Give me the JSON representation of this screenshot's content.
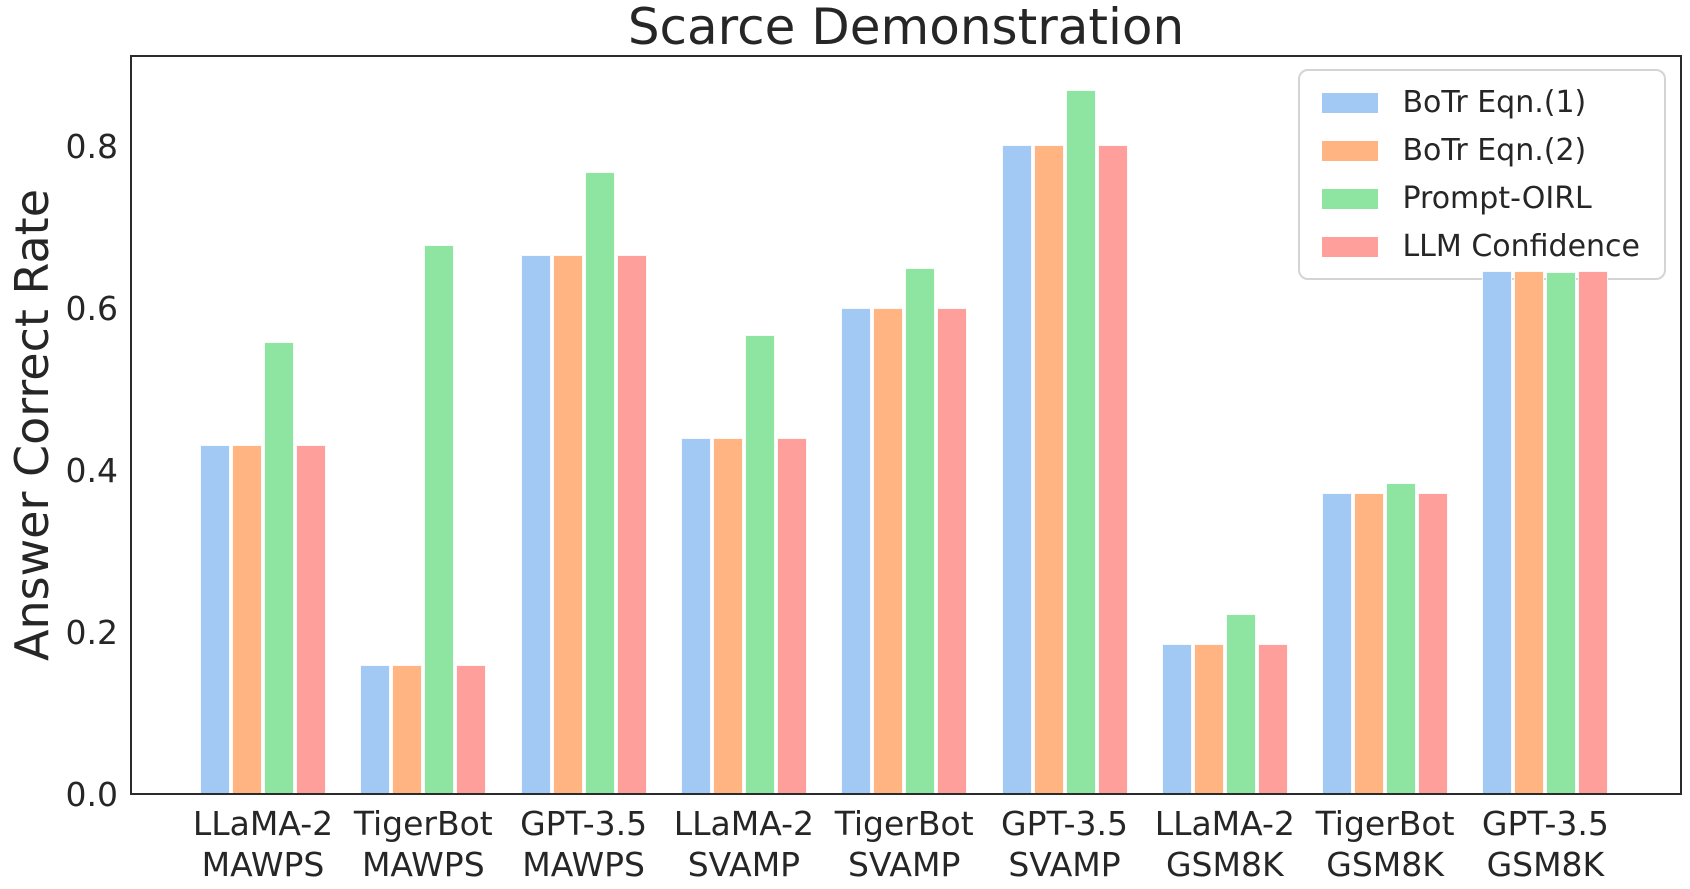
{
  "chart_data": {
    "type": "bar",
    "title": "Scarce Demonstration",
    "xlabel": "",
    "ylabel": "Answer Correct Rate",
    "ylim": [
      0,
      0.914
    ],
    "yticks": [
      "0.0",
      "0.2",
      "0.4",
      "0.6",
      "0.8"
    ],
    "grid": false,
    "legend_position": "upper right",
    "categories": [
      "LLaMA-2\nMAWPS",
      "TigerBot\nMAWPS",
      "GPT-3.5\nMAWPS",
      "LLaMA-2\nSVAMP",
      "TigerBot\nSVAMP",
      "GPT-3.5\nSVAMP",
      "LLaMA-2\nGSM8K",
      "TigerBot\nGSM8K",
      "GPT-3.5\nGSM8K"
    ],
    "series": [
      {
        "name": "BoTr Eqn.(1)",
        "color": "#a1c9f4",
        "values": [
          0.43,
          0.158,
          0.664,
          0.438,
          0.599,
          0.8,
          0.184,
          0.371,
          0.645
        ]
      },
      {
        "name": "BoTr Eqn.(2)",
        "color": "#ffb482",
        "values": [
          0.43,
          0.158,
          0.664,
          0.438,
          0.599,
          0.8,
          0.184,
          0.371,
          0.645
        ]
      },
      {
        "name": "Prompt-OIRL",
        "color": "#8de5a1",
        "values": [
          0.557,
          0.677,
          0.767,
          0.566,
          0.649,
          0.868,
          0.221,
          0.383,
          0.643
        ]
      },
      {
        "name": "LLM Confidence",
        "color": "#ff9f9b",
        "values": [
          0.43,
          0.158,
          0.664,
          0.438,
          0.599,
          0.8,
          0.184,
          0.371,
          0.645
        ]
      }
    ],
    "colors": {
      "text": "#262626",
      "spine": "#2b2b2b",
      "background": "#ffffff"
    }
  }
}
